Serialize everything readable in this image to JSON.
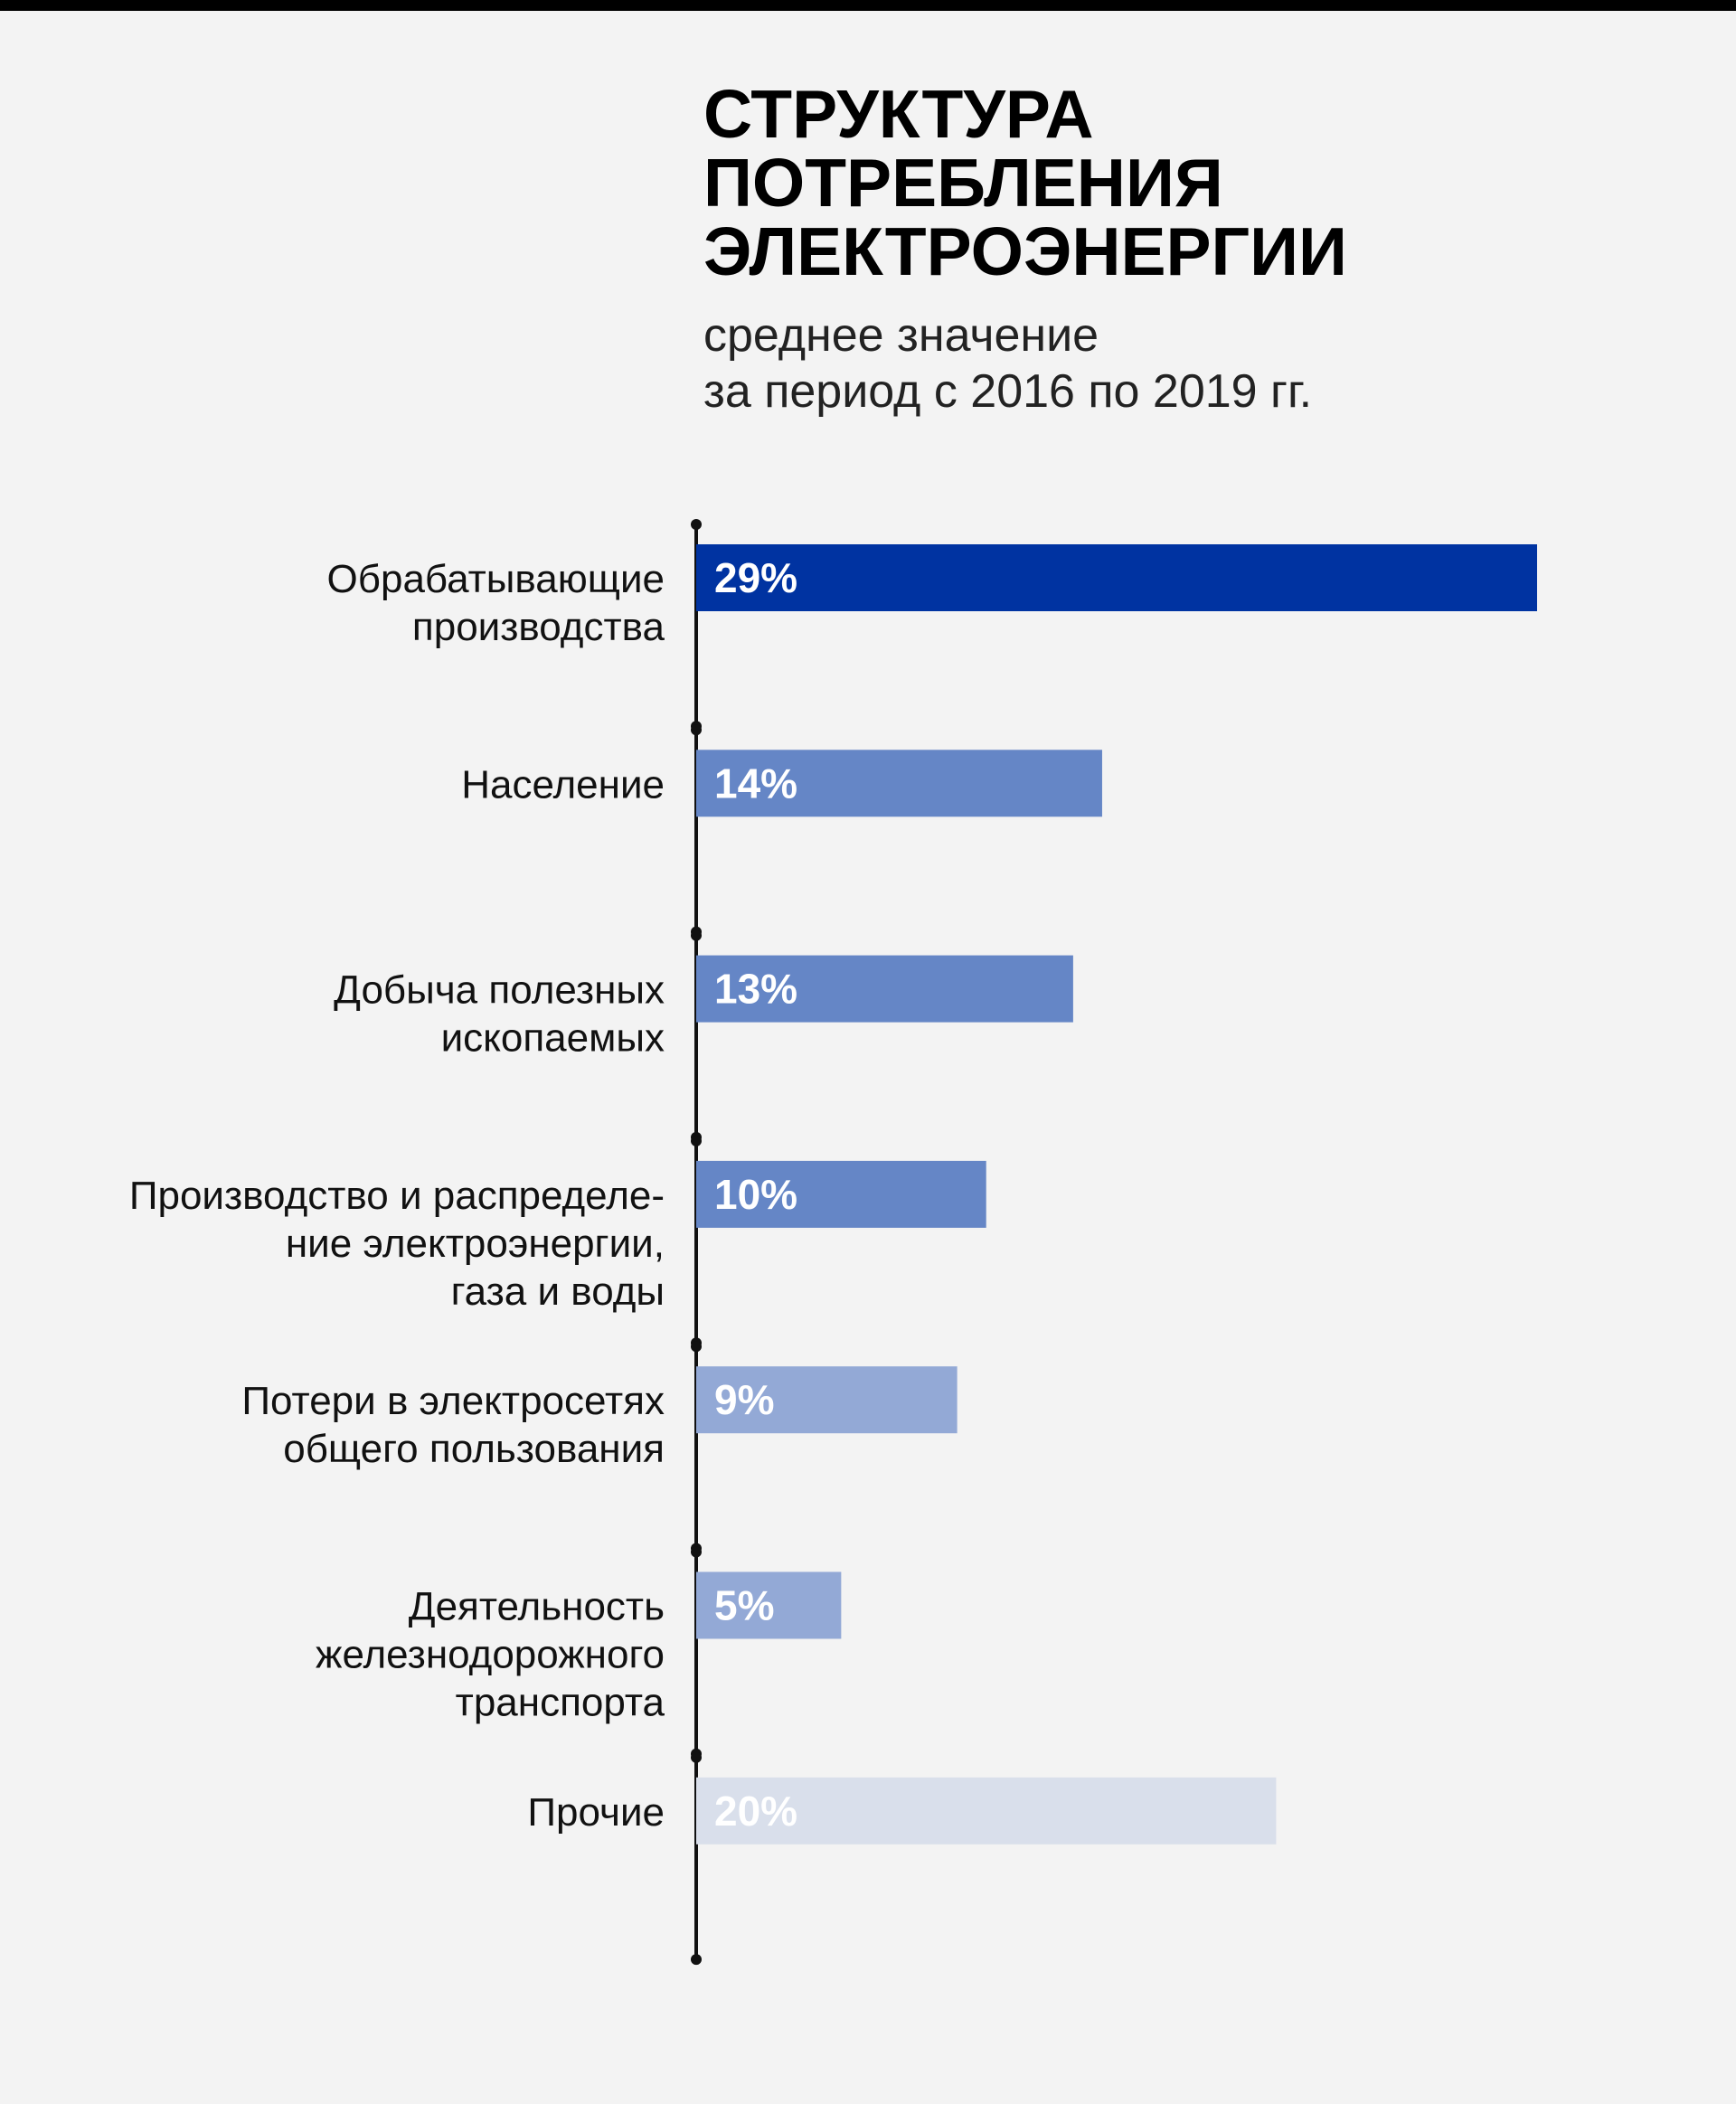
{
  "title_lines": [
    "СТРУКТУРА",
    "ПОТРЕБЛЕНИЯ",
    "ЭЛЕКТРОЭНЕРГИИ"
  ],
  "subtitle_lines": [
    "среднее значение",
    "за период с 2016 по 2019 гг."
  ],
  "chart_data": {
    "type": "bar",
    "orientation": "horizontal",
    "title": "СТРУКТУРА ПОТРЕБЛЕНИЯ ЭЛЕКТРОЭНЕРГИИ",
    "subtitle": "среднее значение за период с 2016 по 2019 гг.",
    "unit": "%",
    "xlim": [
      0,
      29
    ],
    "grid": false,
    "categories": [
      [
        "Обрабатывающие",
        "производства"
      ],
      [
        "Население"
      ],
      [
        "Добыча полезных",
        "ископаемых"
      ],
      [
        "Производство и распределе-",
        "ние электроэнергии,",
        "газа и воды"
      ],
      [
        "Потери в электросетях",
        "общего пользования"
      ],
      [
        "Деятельность",
        "железнодорожного",
        "транспорта"
      ],
      [
        "Прочие"
      ]
    ],
    "values": [
      29,
      14,
      13,
      10,
      9,
      5,
      20
    ],
    "value_labels": [
      "29%",
      "14%",
      "13%",
      "10%",
      "9%",
      "5%",
      "20%"
    ],
    "colors": [
      "#0033a1",
      "#6586c6",
      "#6586c6",
      "#6586c6",
      "#93a9d6",
      "#93a9d6",
      "#d9dfeb"
    ]
  }
}
